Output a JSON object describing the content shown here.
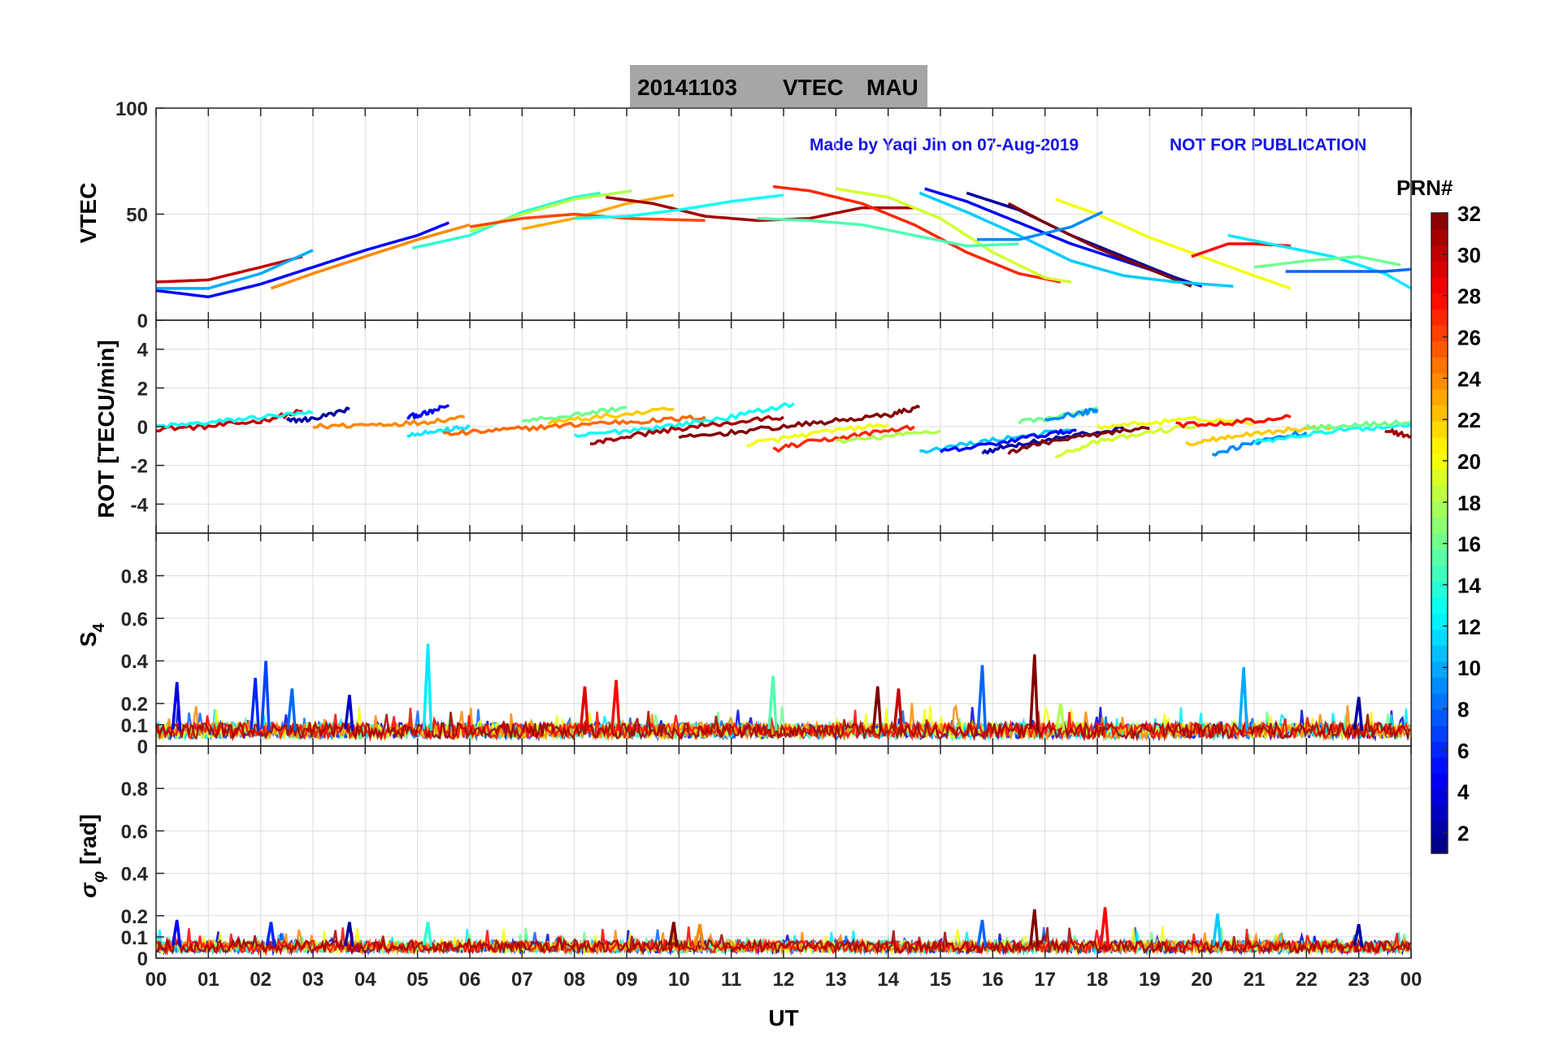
{
  "title": {
    "date": "20141103",
    "quantity": "VTEC",
    "station": "MAU"
  },
  "watermark": {
    "author": "Made by Yaqi Jin on 07-Aug-2019",
    "status": "NOT FOR PUBLICATION"
  },
  "colors": {
    "title_box": "#a6a6a6",
    "watermark": "#1414e6",
    "grid": "#dcdcdc",
    "axis": "#262626"
  },
  "chart_data": [
    {
      "type": "line",
      "panel": "vtec",
      "ylabel": "VTEC",
      "ylim": [
        0,
        100
      ],
      "yticks": [
        0,
        50,
        100
      ],
      "ytick_labels": [
        "0",
        "50",
        "100"
      ],
      "xlim": [
        0,
        24
      ],
      "series": [
        {
          "name": "PRN 5",
          "prn": 5,
          "x": [
            0.0,
            1.0,
            2.0,
            3.0,
            4.0,
            5.0,
            5.6
          ],
          "y": [
            14,
            11,
            17,
            25,
            33,
            40,
            46
          ]
        },
        {
          "name": "PRN 30",
          "prn": 30,
          "x": [
            0.0,
            1.0,
            2.0,
            2.8
          ],
          "y": [
            18,
            19,
            25,
            30
          ]
        },
        {
          "name": "PRN 10",
          "prn": 10,
          "x": [
            0.0,
            1.0,
            2.0,
            3.0
          ],
          "y": [
            15,
            15,
            22,
            33
          ]
        },
        {
          "name": "PRN 24",
          "prn": 24,
          "x": [
            2.2,
            3.0,
            4.0,
            5.0,
            6.0
          ],
          "y": [
            15,
            22,
            30,
            38,
            45
          ]
        },
        {
          "name": "PRN 14",
          "prn": 14,
          "x": [
            4.9,
            6.0,
            7.0,
            8.0,
            8.5
          ],
          "y": [
            34,
            40,
            51,
            58,
            60
          ]
        },
        {
          "name": "PRN 18",
          "prn": 18,
          "x": [
            6.0,
            7.0,
            8.0,
            9.1
          ],
          "y": [
            42,
            50,
            57,
            61
          ]
        },
        {
          "name": "PRN 23",
          "prn": 23,
          "x": [
            7.0,
            8.0,
            9.0,
            9.9
          ],
          "y": [
            43,
            48,
            55,
            59
          ]
        },
        {
          "name": "PRN 26",
          "prn": 26,
          "x": [
            6.0,
            7.0,
            8.0,
            9.0,
            10.5
          ],
          "y": [
            44,
            48,
            50,
            48,
            47
          ]
        },
        {
          "name": "PRN 31",
          "prn": 31,
          "x": [
            8.6,
            9.5,
            10.5,
            11.5,
            12.5,
            13.5,
            14.5
          ],
          "y": [
            58,
            55,
            49,
            47,
            48,
            53,
            53
          ]
        },
        {
          "name": "PRN 13",
          "prn": 13,
          "x": [
            8.0,
            9.0,
            10.0,
            11.0,
            12.0
          ],
          "y": [
            48,
            49,
            52,
            56,
            59
          ]
        },
        {
          "name": "PRN 27",
          "prn": 27,
          "x": [
            11.8,
            12.5,
            13.5,
            14.5,
            15.5,
            16.5,
            17.3
          ],
          "y": [
            63,
            61,
            55,
            45,
            32,
            22,
            18
          ]
        },
        {
          "name": "PRN 19",
          "prn": 19,
          "x": [
            13.0,
            14.0,
            15.0,
            16.0,
            17.0,
            17.5
          ],
          "y": [
            62,
            58,
            48,
            32,
            20,
            18
          ]
        },
        {
          "name": "PRN 5",
          "prn": 5,
          "x": [
            14.7,
            15.5,
            16.5,
            17.5,
            18.5,
            19.5,
            20.0
          ],
          "y": [
            62,
            56,
            46,
            36,
            28,
            20,
            16
          ]
        },
        {
          "name": "PRN 2",
          "prn": 2,
          "x": [
            15.5,
            16.5,
            17.5,
            18.5,
            19.5,
            19.8
          ],
          "y": [
            60,
            52,
            40,
            30,
            20,
            17
          ]
        },
        {
          "name": "PRN 32",
          "prn": 32,
          "x": [
            16.3,
            17.0,
            18.0,
            19.0,
            19.8
          ],
          "y": [
            55,
            46,
            34,
            24,
            16
          ]
        },
        {
          "name": "PRN 11",
          "prn": 11,
          "x": [
            14.6,
            15.5,
            16.5,
            17.5,
            18.5,
            19.5,
            20.6
          ],
          "y": [
            60,
            51,
            40,
            28,
            21,
            18,
            16
          ]
        },
        {
          "name": "PRN 20",
          "prn": 20,
          "x": [
            17.2,
            18.0,
            19.0,
            20.0,
            21.0,
            21.7
          ],
          "y": [
            57,
            50,
            39,
            30,
            21,
            15
          ]
        },
        {
          "name": "PRN 28",
          "prn": 28,
          "x": [
            19.8,
            20.5,
            21.0,
            21.7
          ],
          "y": [
            30,
            36,
            36,
            35
          ]
        },
        {
          "name": "PRN 12",
          "prn": 12,
          "x": [
            20.5,
            21.5,
            22.5,
            23.5,
            24.0
          ],
          "y": [
            40,
            35,
            30,
            22,
            15
          ]
        },
        {
          "name": "PRN 8",
          "prn": 8,
          "x": [
            21.6,
            22.5,
            23.5,
            24.0
          ],
          "y": [
            23,
            23,
            23,
            24
          ]
        },
        {
          "name": "PRN 16",
          "prn": 16,
          "x": [
            21.0,
            22.0,
            23.0,
            23.8
          ],
          "y": [
            25,
            28,
            30,
            26
          ]
        },
        {
          "name": "PRN 9",
          "prn": 9,
          "x": [
            15.7,
            16.5,
            17.5,
            18.1
          ],
          "y": [
            38,
            38,
            44,
            51
          ]
        },
        {
          "name": "PRN 15",
          "prn": 15,
          "x": [
            11.5,
            12.5,
            13.5,
            14.5,
            15.5,
            16.5
          ],
          "y": [
            48,
            47,
            45,
            40,
            35,
            36
          ]
        }
      ]
    },
    {
      "type": "line",
      "panel": "rot",
      "ylabel": "ROT [TECU/min]",
      "ylim": [
        -5.5,
        5.5
      ],
      "yticks": [
        -4,
        -2,
        0,
        2,
        4
      ],
      "ytick_labels": [
        "-4",
        "-2",
        "0",
        "2",
        "4"
      ],
      "xlim": [
        0,
        24
      ],
      "series": [
        {
          "name": "PRN 30",
          "prn": 30,
          "x": [
            0.0,
            1.0,
            2.0,
            2.8
          ],
          "y": [
            -0.1,
            0.0,
            0.3,
            0.8
          ]
        },
        {
          "name": "PRN 13",
          "prn": 13,
          "x": [
            0.0,
            1.0,
            2.0,
            3.0
          ],
          "y": [
            0.0,
            0.2,
            0.5,
            0.7
          ]
        },
        {
          "name": "PRN 2",
          "prn": 2,
          "x": [
            2.5,
            3.0,
            3.7
          ],
          "y": [
            0.3,
            0.4,
            0.9
          ]
        },
        {
          "name": "PRN 5",
          "prn": 5,
          "x": [
            4.8,
            5.2,
            5.6
          ],
          "y": [
            0.5,
            0.7,
            1.1
          ]
        },
        {
          "name": "PRN 24",
          "prn": 24,
          "x": [
            3.0,
            4.0,
            5.0,
            5.9
          ],
          "y": [
            0.0,
            0.1,
            0.2,
            0.5
          ]
        },
        {
          "name": "PRN 12",
          "prn": 12,
          "x": [
            4.8,
            5.5,
            6.0
          ],
          "y": [
            -0.4,
            -0.2,
            0.0
          ]
        },
        {
          "name": "PRN 25",
          "prn": 25,
          "x": [
            5.5,
            6.5,
            7.5,
            8.5,
            9.5,
            10.5
          ],
          "y": [
            -0.4,
            -0.2,
            0.0,
            0.2,
            0.3,
            0.5
          ]
        },
        {
          "name": "PRN 16",
          "prn": 16,
          "x": [
            7.0,
            8.0,
            9.0
          ],
          "y": [
            0.3,
            0.6,
            1.0
          ]
        },
        {
          "name": "PRN 22",
          "prn": 22,
          "x": [
            7.5,
            8.5,
            9.9
          ],
          "y": [
            0.2,
            0.5,
            0.9
          ]
        },
        {
          "name": "PRN 13",
          "prn": 13,
          "x": [
            8.0,
            9.0,
            10.0,
            11.0,
            12.2
          ],
          "y": [
            -0.5,
            -0.2,
            0.1,
            0.5,
            1.2
          ]
        },
        {
          "name": "PRN 31",
          "prn": 31,
          "x": [
            8.3,
            9.0,
            10.0,
            11.0,
            12.0
          ],
          "y": [
            -0.9,
            -0.5,
            -0.1,
            0.2,
            0.5
          ]
        },
        {
          "name": "PRN 32",
          "prn": 32,
          "x": [
            10.0,
            11.0,
            12.0,
            13.0,
            14.0,
            14.6
          ],
          "y": [
            -0.6,
            -0.3,
            0.0,
            0.3,
            0.6,
            1.0
          ]
        },
        {
          "name": "PRN 20",
          "prn": 20,
          "x": [
            11.3,
            12.0,
            13.0,
            14.0
          ],
          "y": [
            -0.9,
            -0.6,
            -0.2,
            0.1
          ]
        },
        {
          "name": "PRN 27",
          "prn": 27,
          "x": [
            11.8,
            12.5,
            13.5,
            14.5
          ],
          "y": [
            -1.2,
            -0.8,
            -0.4,
            0.0
          ]
        },
        {
          "name": "PRN 18",
          "prn": 18,
          "x": [
            13.0,
            14.0,
            15.0
          ],
          "y": [
            -0.8,
            -0.5,
            -0.2
          ]
        },
        {
          "name": "PRN 11",
          "prn": 11,
          "x": [
            14.6,
            15.5,
            16.5,
            17.5
          ],
          "y": [
            -1.3,
            -0.9,
            -0.5,
            -0.2
          ]
        },
        {
          "name": "PRN 5",
          "prn": 5,
          "x": [
            15.0,
            16.0,
            17.0,
            17.6
          ],
          "y": [
            -1.3,
            -0.9,
            -0.4,
            -0.2
          ]
        },
        {
          "name": "PRN 2",
          "prn": 2,
          "x": [
            15.8,
            16.5,
            17.5,
            18.5
          ],
          "y": [
            -1.3,
            -0.9,
            -0.5,
            -0.1
          ]
        },
        {
          "name": "PRN 32",
          "prn": 32,
          "x": [
            16.3,
            17.0,
            18.0,
            19.0
          ],
          "y": [
            -1.3,
            -0.8,
            -0.4,
            -0.1
          ]
        },
        {
          "name": "PRN 16",
          "prn": 16,
          "x": [
            16.5,
            17.5,
            18.0
          ],
          "y": [
            0.2,
            0.6,
            1.0
          ]
        },
        {
          "name": "PRN 9",
          "prn": 9,
          "x": [
            17.0,
            17.7,
            18.0
          ],
          "y": [
            0.4,
            0.7,
            0.9
          ]
        },
        {
          "name": "PRN 19",
          "prn": 19,
          "x": [
            17.2,
            18.0,
            19.0,
            20.0
          ],
          "y": [
            -1.5,
            -0.8,
            -0.3,
            0.1
          ]
        },
        {
          "name": "PRN 20",
          "prn": 20,
          "x": [
            18.0,
            19.0,
            20.0,
            21.0
          ],
          "y": [
            0.0,
            0.2,
            0.4,
            0.2
          ]
        },
        {
          "name": "PRN 28",
          "prn": 28,
          "x": [
            19.5,
            20.5,
            21.7
          ],
          "y": [
            0.1,
            0.2,
            0.5
          ]
        },
        {
          "name": "PRN 22",
          "prn": 22,
          "x": [
            19.7,
            20.5,
            21.5,
            22.5
          ],
          "y": [
            -0.9,
            -0.5,
            -0.2,
            0.0
          ]
        },
        {
          "name": "PRN 9",
          "prn": 9,
          "x": [
            20.2,
            21.0,
            22.0
          ],
          "y": [
            -1.4,
            -0.8,
            -0.3
          ]
        },
        {
          "name": "PRN 13",
          "prn": 13,
          "x": [
            21.0,
            22.0,
            23.0,
            24.0
          ],
          "y": [
            -0.8,
            -0.4,
            -0.1,
            0.1
          ]
        },
        {
          "name": "PRN 16",
          "prn": 16,
          "x": [
            22.0,
            23.0,
            24.0
          ],
          "y": [
            0.0,
            0.1,
            0.2
          ]
        },
        {
          "name": "PRN 31",
          "prn": 31,
          "x": [
            23.5,
            24.0
          ],
          "y": [
            -0.2,
            -0.5
          ]
        }
      ]
    },
    {
      "type": "line",
      "panel": "s4",
      "ylabel": "S",
      "ylabel_sub": "4",
      "ylim": [
        0,
        1
      ],
      "yticks": [
        0,
        0.1,
        0.2,
        0.4,
        0.6,
        0.8
      ],
      "ytick_labels": [
        "0",
        "0.1",
        "0.2",
        "0.4",
        "0.6",
        "0.8"
      ],
      "xlim": [
        0,
        24
      ],
      "baseline": 0.08,
      "spikes": [
        {
          "prn": 7,
          "x": 2.1,
          "y": 0.4
        },
        {
          "prn": 6,
          "x": 1.9,
          "y": 0.32
        },
        {
          "prn": 4,
          "x": 0.4,
          "y": 0.3
        },
        {
          "prn": 12,
          "x": 5.2,
          "y": 0.48
        },
        {
          "prn": 3,
          "x": 3.7,
          "y": 0.24
        },
        {
          "prn": 8,
          "x": 2.6,
          "y": 0.27
        },
        {
          "prn": 28,
          "x": 8.8,
          "y": 0.31
        },
        {
          "prn": 29,
          "x": 8.2,
          "y": 0.28
        },
        {
          "prn": 15,
          "x": 11.8,
          "y": 0.33
        },
        {
          "prn": 32,
          "x": 13.8,
          "y": 0.28
        },
        {
          "prn": 30,
          "x": 14.2,
          "y": 0.27
        },
        {
          "prn": 8,
          "x": 15.8,
          "y": 0.38
        },
        {
          "prn": 32,
          "x": 16.8,
          "y": 0.43
        },
        {
          "prn": 10,
          "x": 20.8,
          "y": 0.37
        },
        {
          "prn": 18,
          "x": 17.3,
          "y": 0.2
        },
        {
          "prn": 2,
          "x": 23.0,
          "y": 0.23
        }
      ]
    },
    {
      "type": "line",
      "panel": "sigma_phi",
      "ylabel": "σ",
      "ylabel_sub": "φ",
      "ylabel_unit": "[rad]",
      "ylim": [
        0,
        1
      ],
      "yticks": [
        0,
        0.1,
        0.2,
        0.4,
        0.6,
        0.8
      ],
      "ytick_labels": [
        "0",
        "0.1",
        "0.2",
        "0.4",
        "0.6",
        "0.8"
      ],
      "xlim": [
        0,
        24
      ],
      "xlabel": "UT",
      "xticks": [
        0,
        1,
        2,
        3,
        4,
        5,
        6,
        7,
        8,
        9,
        10,
        11,
        12,
        13,
        14,
        15,
        16,
        17,
        18,
        19,
        20,
        21,
        22,
        23,
        24
      ],
      "xtick_labels": [
        "00",
        "01",
        "02",
        "03",
        "04",
        "05",
        "06",
        "07",
        "08",
        "09",
        "10",
        "11",
        "12",
        "13",
        "14",
        "15",
        "16",
        "17",
        "18",
        "19",
        "20",
        "21",
        "22",
        "23",
        "00"
      ],
      "baseline": 0.06,
      "spikes": [
        {
          "prn": 5,
          "x": 0.4,
          "y": 0.18
        },
        {
          "prn": 6,
          "x": 2.2,
          "y": 0.17
        },
        {
          "prn": 2,
          "x": 3.7,
          "y": 0.17
        },
        {
          "prn": 14,
          "x": 5.2,
          "y": 0.17
        },
        {
          "prn": 32,
          "x": 9.9,
          "y": 0.17
        },
        {
          "prn": 24,
          "x": 10.4,
          "y": 0.16
        },
        {
          "prn": 8,
          "x": 15.8,
          "y": 0.18
        },
        {
          "prn": 32,
          "x": 16.8,
          "y": 0.23
        },
        {
          "prn": 28,
          "x": 18.15,
          "y": 0.24
        },
        {
          "prn": 11,
          "x": 20.3,
          "y": 0.21
        },
        {
          "prn": 2,
          "x": 23.0,
          "y": 0.16
        }
      ]
    }
  ],
  "colorbar": {
    "label": "PRN#",
    "range": [
      1,
      32
    ],
    "ticks": [
      2,
      4,
      6,
      8,
      10,
      12,
      14,
      16,
      18,
      20,
      22,
      24,
      26,
      28,
      30,
      32
    ],
    "tick_labels": [
      "2",
      "4",
      "6",
      "8",
      "10",
      "12",
      "14",
      "16",
      "18",
      "20",
      "22",
      "24",
      "26",
      "28",
      "30",
      "32"
    ],
    "colormap": "jet"
  }
}
